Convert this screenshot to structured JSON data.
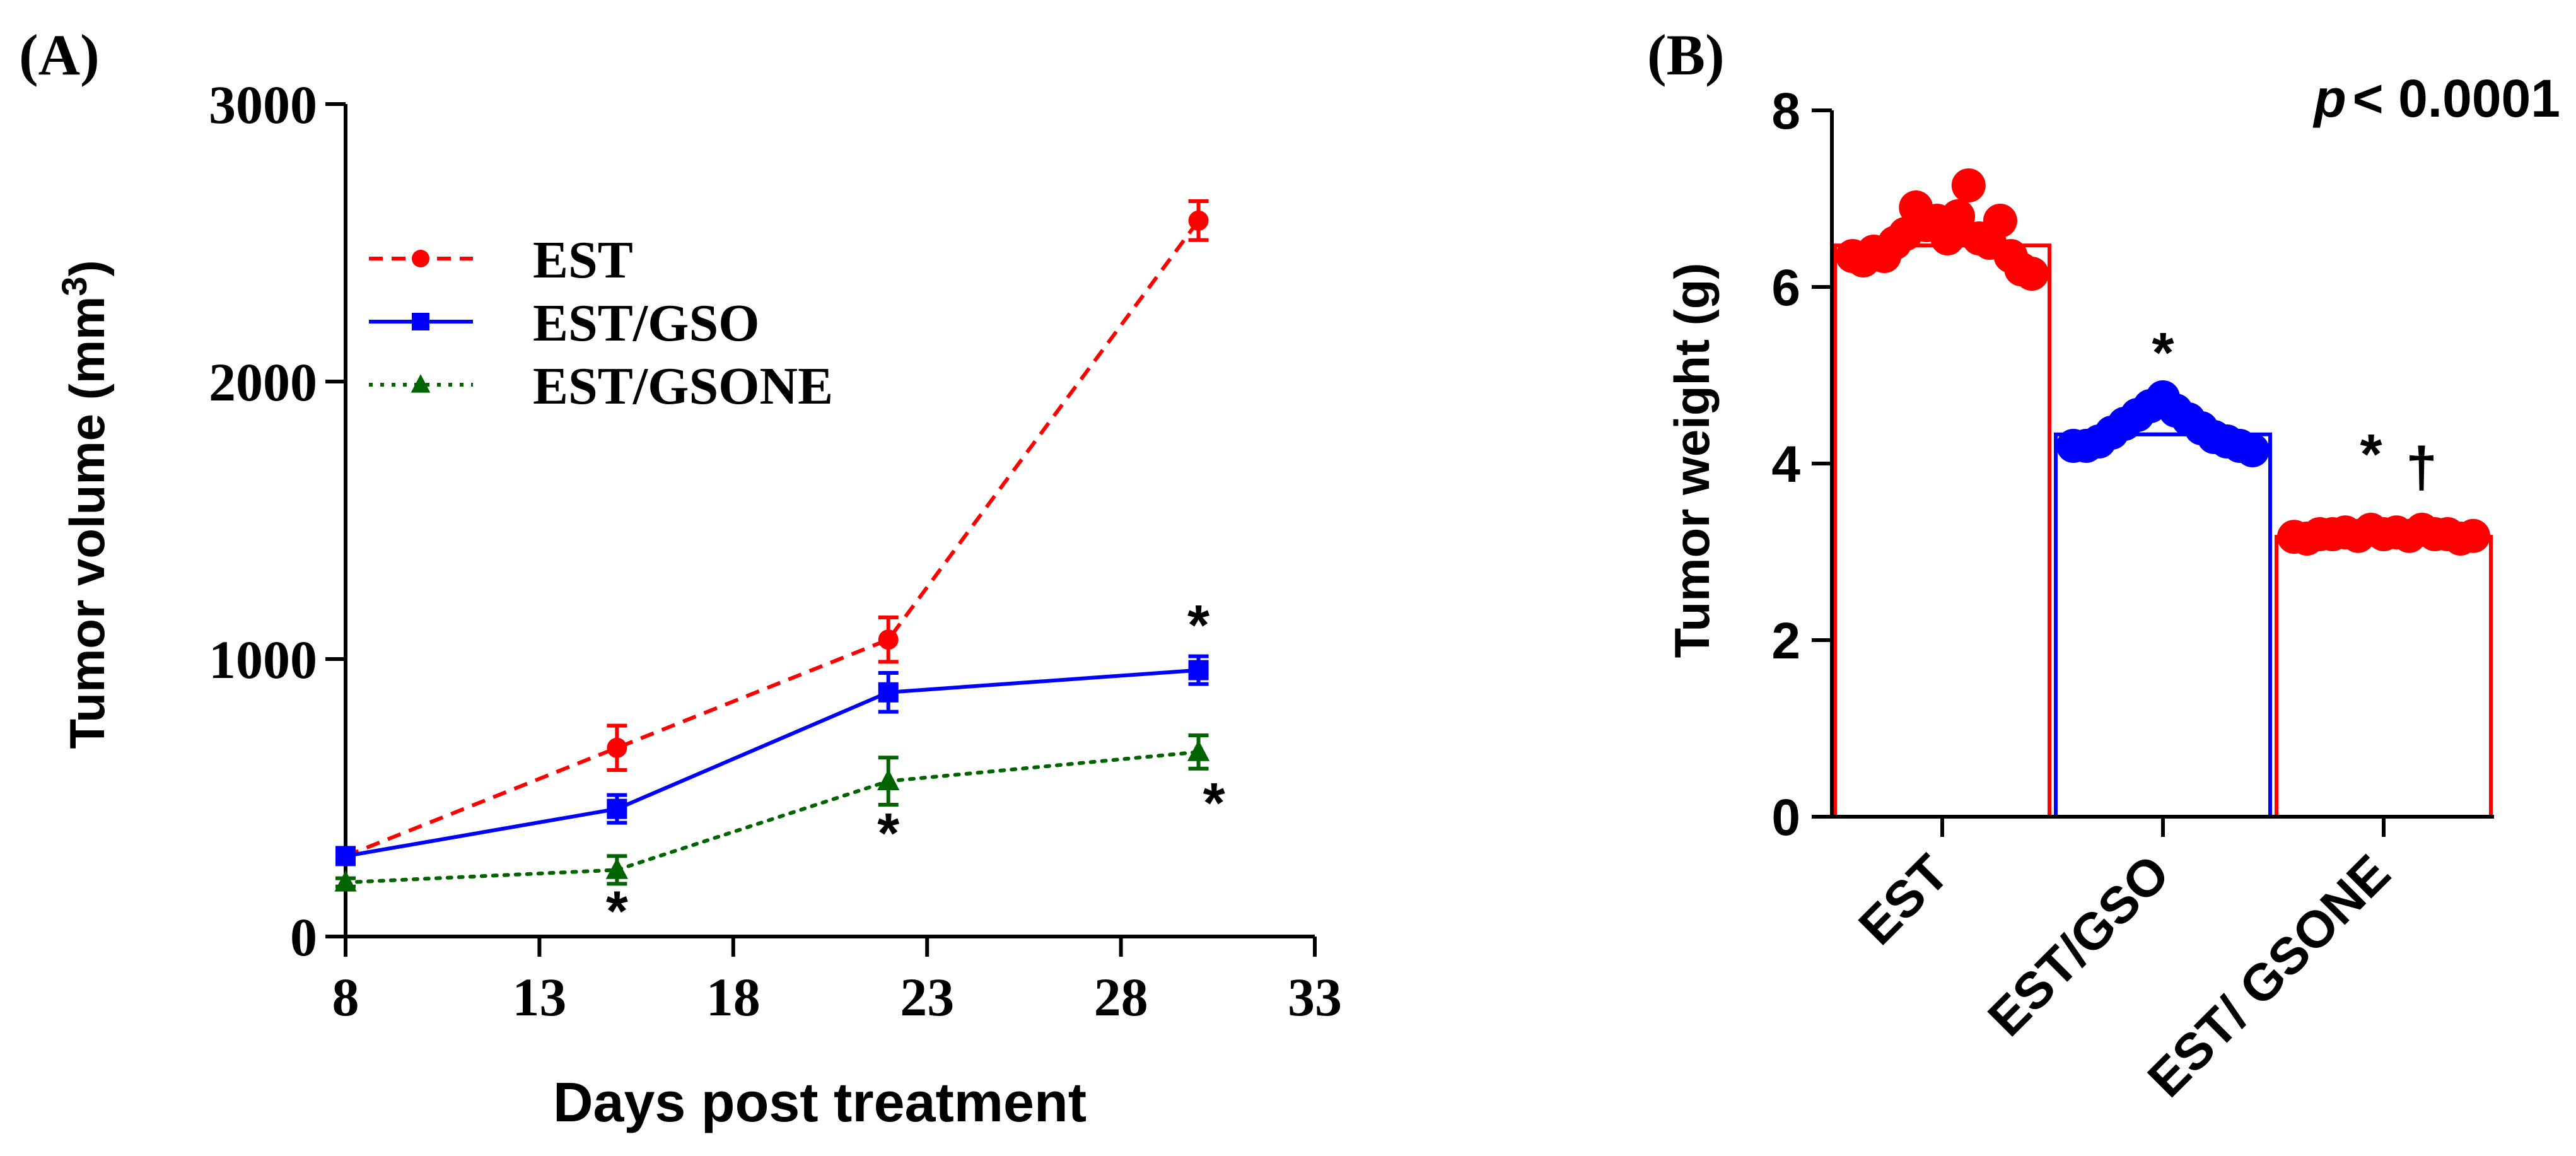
{
  "chart_data": [
    {
      "type": "line",
      "panel_label": "(A)",
      "xlabel": "Days post treatment",
      "ylabel": "Tumor volume (mm",
      "ylabel_sup": "3",
      "ylabel_close": ")",
      "xlim": [
        8,
        33
      ],
      "ylim": [
        0,
        3000
      ],
      "x_ticks": [
        8,
        13,
        18,
        23,
        28,
        33
      ],
      "y_ticks": [
        0,
        1000,
        2000,
        3000
      ],
      "x": [
        8,
        15,
        22,
        30
      ],
      "series": [
        {
          "name": "EST",
          "color": "#ff0000",
          "style": "dashed",
          "marker": "circle",
          "values": [
            290,
            680,
            1070,
            2580
          ],
          "errors": [
            20,
            80,
            80,
            70
          ]
        },
        {
          "name": "EST/GSO",
          "color": "#0000ff",
          "style": "solid",
          "marker": "square",
          "values": [
            290,
            460,
            880,
            960
          ],
          "errors": [
            20,
            50,
            70,
            50
          ]
        },
        {
          "name": "EST/GSONE",
          "color": "#006400",
          "style": "dotted",
          "marker": "triangle",
          "values": [
            195,
            240,
            560,
            665
          ],
          "errors": [
            15,
            50,
            85,
            60
          ]
        }
      ],
      "annotations": [
        {
          "text": "*",
          "x": 15,
          "y": 90
        },
        {
          "text": "*",
          "x": 22,
          "y": 370
        },
        {
          "text": "*",
          "x": 30.4,
          "y": 480
        },
        {
          "text": "*",
          "x": 30,
          "y": 1120
        }
      ]
    },
    {
      "type": "bar",
      "panel_label": "(B)",
      "ylabel": "Tumor weight (g)",
      "categories": [
        "EST",
        "EST/GSO",
        "EST/ GSONE"
      ],
      "values": [
        6.47,
        4.33,
        3.17
      ],
      "colors": [
        "#ff0000",
        "#0000ff",
        "#ff0000"
      ],
      "ylim": [
        0,
        8
      ],
      "y_ticks": [
        0,
        2,
        4,
        6,
        8
      ],
      "points": [
        [
          6.35,
          6.3,
          6.4,
          6.35,
          6.5,
          6.6,
          6.9,
          6.7,
          6.75,
          6.55,
          6.8,
          7.15,
          6.55,
          6.5,
          6.75,
          6.35,
          6.2,
          6.15
        ],
        [
          4.2,
          4.2,
          4.25,
          4.35,
          4.45,
          4.55,
          4.65,
          4.75,
          4.6,
          4.5,
          4.4,
          4.3,
          4.25,
          4.2,
          4.15
        ],
        [
          3.17,
          3.15,
          3.2,
          3.2,
          3.22,
          3.18,
          3.25,
          3.2,
          3.22,
          3.18,
          3.25,
          3.2,
          3.2,
          3.15,
          3.18
        ]
      ],
      "annotations": [
        {
          "text": "*",
          "category": "EST/GSO",
          "y": 5.25
        },
        {
          "text": "*",
          "category": "EST/ GSONE",
          "y": 4.1
        },
        {
          "text": "†",
          "category": "EST/ GSONE",
          "y": 3.95
        }
      ],
      "p_label": "p",
      "p_value": "< 0.0001"
    }
  ]
}
